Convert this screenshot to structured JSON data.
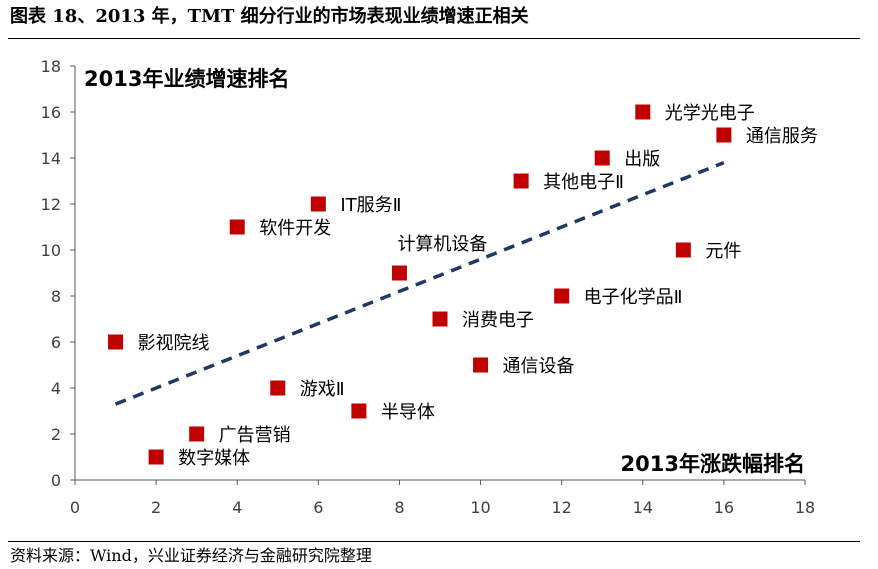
{
  "figure": {
    "title": "图表 18、2013 年，TMT 细分行业的市场表现业绩增速正相关",
    "source": "资料来源：Wind，兴业证券经济与金融研究院整理"
  },
  "colors": {
    "marker": "#c00000",
    "trend": "#1f3864",
    "axis": "#595959",
    "text": "#404040"
  },
  "chart_data": {
    "type": "scatter",
    "title": "",
    "ylabel": "2013年业绩增速排名",
    "xlabel": "2013年涨跌幅排名",
    "xlim": [
      0,
      18
    ],
    "ylim": [
      0,
      18
    ],
    "xticks": [
      0,
      2,
      4,
      6,
      8,
      10,
      12,
      14,
      16,
      18
    ],
    "yticks": [
      0,
      2,
      4,
      6,
      8,
      10,
      12,
      14,
      16,
      18
    ],
    "grid": false,
    "points": [
      {
        "label": "光学光电子",
        "x": 14,
        "y": 16,
        "label_pos": "right"
      },
      {
        "label": "通信服务",
        "x": 16,
        "y": 15,
        "label_pos": "right"
      },
      {
        "label": "出版",
        "x": 13,
        "y": 14,
        "label_pos": "right"
      },
      {
        "label": "其他电子Ⅱ",
        "x": 11,
        "y": 13,
        "label_pos": "right"
      },
      {
        "label": "IT服务Ⅱ",
        "x": 6,
        "y": 12,
        "label_pos": "right"
      },
      {
        "label": "软件开发",
        "x": 4,
        "y": 11,
        "label_pos": "right"
      },
      {
        "label": "元件",
        "x": 15,
        "y": 10,
        "label_pos": "right"
      },
      {
        "label": "计算机设备",
        "x": 8,
        "y": 9,
        "label_pos": "above-right"
      },
      {
        "label": "电子化学品Ⅱ",
        "x": 12,
        "y": 8,
        "label_pos": "right"
      },
      {
        "label": "消费电子",
        "x": 9,
        "y": 7,
        "label_pos": "right"
      },
      {
        "label": "影视院线",
        "x": 1,
        "y": 6,
        "label_pos": "right"
      },
      {
        "label": "通信设备",
        "x": 10,
        "y": 5,
        "label_pos": "right"
      },
      {
        "label": "游戏Ⅱ",
        "x": 5,
        "y": 4,
        "label_pos": "right"
      },
      {
        "label": "半导体",
        "x": 7,
        "y": 3,
        "label_pos": "right"
      },
      {
        "label": "广告营销",
        "x": 3,
        "y": 2,
        "label_pos": "right"
      },
      {
        "label": "数字媒体",
        "x": 2,
        "y": 1,
        "label_pos": "right"
      }
    ],
    "trendline": {
      "style": "dashed",
      "x": [
        1,
        16
      ],
      "y": [
        3.3,
        13.8
      ]
    }
  }
}
